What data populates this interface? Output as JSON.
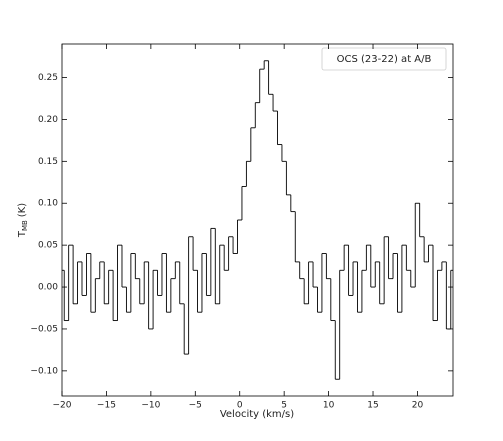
{
  "chart_data": {
    "type": "step",
    "ylabel": "T",
    "ylabel_sub": "MB",
    "ylabel_unit": "(K)",
    "xlabel": "Velocity (km/s)",
    "series": [
      {
        "name": "OCS (23-22) at A/B",
        "color": "#000000",
        "x": [
          -20,
          -19.5,
          -19,
          -18.5,
          -18,
          -17.5,
          -17,
          -16.5,
          -16,
          -15.5,
          -15,
          -14.5,
          -14,
          -13.5,
          -13,
          -12.5,
          -12,
          -11.5,
          -11,
          -10.5,
          -10,
          -9.5,
          -9,
          -8.5,
          -8,
          -7.5,
          -7,
          -6.5,
          -6,
          -5.5,
          -5,
          -4.5,
          -4,
          -3.5,
          -3,
          -2.5,
          -2,
          -1.5,
          -1,
          -0.5,
          0,
          0.5,
          1,
          1.5,
          2,
          2.5,
          3,
          3.5,
          4,
          4.5,
          5,
          5.5,
          6,
          6.5,
          7,
          7.5,
          8,
          8.5,
          9,
          9.5,
          10,
          10.5,
          11,
          11.5,
          12,
          12.5,
          13,
          13.5,
          14,
          14.5,
          15,
          15.5,
          16,
          16.5,
          17,
          17.5,
          18,
          18.5,
          19,
          19.5,
          20,
          20.5,
          21,
          21.5,
          22,
          22.5,
          23,
          23.5,
          24
        ],
        "values": [
          0.02,
          -0.04,
          0.05,
          -0.02,
          0.03,
          -0.01,
          0.04,
          -0.03,
          0.01,
          0.03,
          -0.02,
          0.02,
          -0.04,
          0.05,
          0.0,
          -0.03,
          0.04,
          0.01,
          -0.02,
          0.03,
          -0.05,
          0.02,
          -0.01,
          0.04,
          -0.03,
          0.01,
          0.03,
          -0.02,
          -0.08,
          0.06,
          0.02,
          -0.03,
          0.04,
          -0.01,
          0.07,
          -0.02,
          0.05,
          0.02,
          0.06,
          0.04,
          0.08,
          0.12,
          0.15,
          0.19,
          0.22,
          0.26,
          0.27,
          0.23,
          0.21,
          0.17,
          0.15,
          0.11,
          0.09,
          0.03,
          0.01,
          -0.02,
          0.03,
          0.0,
          -0.03,
          0.04,
          0.01,
          -0.04,
          -0.11,
          0.02,
          0.05,
          -0.01,
          0.03,
          -0.03,
          0.02,
          0.05,
          0.0,
          0.03,
          -0.02,
          0.06,
          0.01,
          0.04,
          -0.03,
          0.05,
          0.02,
          0.0,
          0.1,
          0.06,
          0.03,
          0.05,
          -0.04,
          0.02,
          0.03,
          -0.05,
          0.02
        ]
      }
    ],
    "xlim": [
      -20,
      24
    ],
    "xticks": [
      {
        "value": -20,
        "label": "−20"
      },
      {
        "value": -15,
        "label": "−15"
      },
      {
        "value": -10,
        "label": "−10"
      },
      {
        "value": -5,
        "label": "−5"
      },
      0,
      5,
      10,
      15,
      20
    ],
    "ylim": [
      -0.13,
      0.29
    ],
    "yticks": [
      {
        "value": -0.1,
        "label": "−0.10"
      },
      {
        "value": -0.05,
        "label": "−0.05"
      },
      {
        "value": 0,
        "label": "0.00"
      },
      0.05,
      {
        "value": 0.1,
        "label": "0.10"
      },
      0.15,
      {
        "value": 0.2,
        "label": "0.20"
      },
      0.25
    ],
    "legend": "upper right",
    "grid": false
  }
}
